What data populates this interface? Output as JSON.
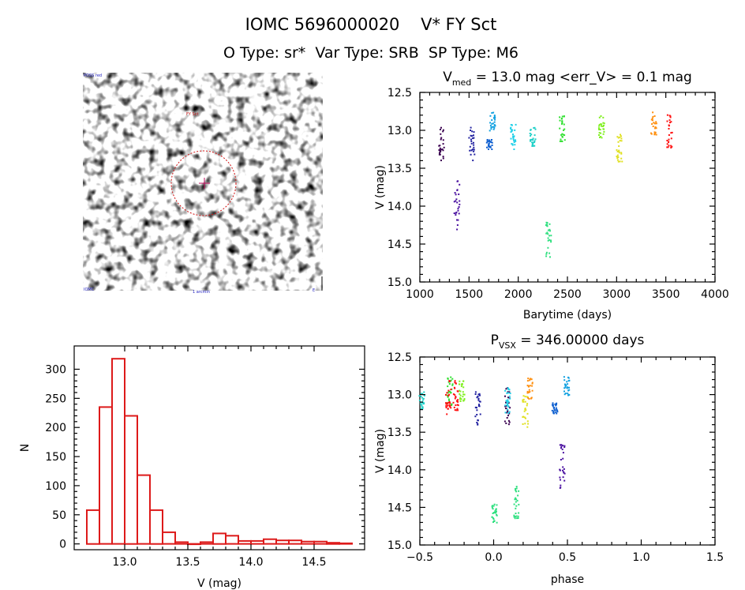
{
  "header": {
    "title": "IOMC 5696000020    V* FY Sct",
    "subtitle": "O Type: sr*  Var Type: SRB  SP Type: M6"
  },
  "finder": {
    "label_top_left": "POSS red",
    "label_marker": "FY Sct",
    "label_bottom_left": "IOMC",
    "label_bottom_center": "1 arcmin",
    "label_bottom_right": "E"
  },
  "chart_data": [
    {
      "id": "lightcurve",
      "type": "scatter",
      "title": "V",
      "title_sub": "med",
      "title_rest": " = 13.0 mag <err_V> = 0.1 mag",
      "xlabel": "Barytime (days)",
      "ylabel": "V (mag)",
      "xlim": [
        1000,
        4000
      ],
      "ylim": [
        15.0,
        12.5
      ],
      "xticks": [
        1000,
        1500,
        2000,
        2500,
        3000,
        3500,
        4000
      ],
      "yticks": [
        12.5,
        13.0,
        13.5,
        14.0,
        14.5,
        15.0
      ],
      "xtick_labels": [
        "1000",
        "1500",
        "2000",
        "2500",
        "3000",
        "3500",
        "4000"
      ],
      "ytick_labels": [
        "12.5",
        "13.0",
        "13.5",
        "14.0",
        "14.5",
        "15.0"
      ],
      "groups": [
        {
          "x": 1210,
          "y0": 12.9,
          "y1": 13.4,
          "color": "#3a0050"
        },
        {
          "x": 1370,
          "y0": 13.65,
          "y1": 14.3,
          "color": "#4a10a0"
        },
        {
          "x": 1520,
          "y0": 12.95,
          "y1": 13.4,
          "color": "#2020a0"
        },
        {
          "x": 1700,
          "y0": 13.1,
          "y1": 13.25,
          "color": "#1060d0"
        },
        {
          "x": 1730,
          "y0": 12.75,
          "y1": 13.0,
          "color": "#10a0e0"
        },
        {
          "x": 1940,
          "y0": 12.9,
          "y1": 13.25,
          "color": "#20d0e8"
        },
        {
          "x": 2140,
          "y0": 12.95,
          "y1": 13.2,
          "color": "#20d0c8"
        },
        {
          "x": 2300,
          "y0": 14.2,
          "y1": 14.7,
          "color": "#30e080"
        },
        {
          "x": 2440,
          "y0": 12.75,
          "y1": 13.15,
          "color": "#30e030"
        },
        {
          "x": 2840,
          "y0": 12.8,
          "y1": 13.1,
          "color": "#80f020"
        },
        {
          "x": 3020,
          "y0": 13.0,
          "y1": 13.45,
          "color": "#e0e020"
        },
        {
          "x": 3370,
          "y0": 12.75,
          "y1": 13.05,
          "color": "#ff9010"
        },
        {
          "x": 3530,
          "y0": 12.75,
          "y1": 13.25,
          "color": "#ff1010"
        }
      ]
    },
    {
      "id": "histogram",
      "type": "bar",
      "title": "",
      "xlabel": "V (mag)",
      "ylabel": "N",
      "xlim": [
        12.6,
        14.9
      ],
      "ylim": [
        -10,
        340
      ],
      "xticks": [
        13.0,
        13.5,
        14.0,
        14.5
      ],
      "yticks": [
        0,
        50,
        100,
        150,
        200,
        250,
        300
      ],
      "xtick_labels": [
        "13.0",
        "13.5",
        "14.0",
        "14.5"
      ],
      "ytick_labels": [
        "0",
        "50",
        "100",
        "150",
        "200",
        "250",
        "300"
      ],
      "bin_width": 0.1,
      "bin_starts": [
        12.7,
        12.8,
        12.9,
        13.0,
        13.1,
        13.2,
        13.3,
        13.4,
        13.5,
        13.6,
        13.7,
        13.8,
        13.9,
        14.0,
        14.1,
        14.2,
        14.3,
        14.4,
        14.5,
        14.6,
        14.7
      ],
      "values": [
        58,
        235,
        318,
        220,
        118,
        58,
        20,
        3,
        0,
        3,
        18,
        14,
        5,
        5,
        8,
        6,
        6,
        4,
        4,
        2,
        1
      ],
      "color": "#dd1a1a"
    },
    {
      "id": "phased",
      "type": "scatter",
      "title": "P",
      "title_sub": "VSX",
      "title_rest": " = 346.00000 days",
      "xlabel": "phase",
      "ylabel": "V (mag)",
      "xlim": [
        -0.5,
        1.5
      ],
      "ylim": [
        15.0,
        12.5
      ],
      "xticks": [
        -0.5,
        0.0,
        0.5,
        1.0,
        1.5
      ],
      "yticks": [
        12.5,
        13.0,
        13.5,
        14.0,
        14.5,
        15.0
      ],
      "xtick_labels": [
        "−0.5",
        "0.0",
        "0.5",
        "1.0",
        "1.5"
      ],
      "ytick_labels": [
        "12.5",
        "13.0",
        "13.5",
        "14.0",
        "14.5",
        "15.0"
      ],
      "groups": [
        {
          "x": 0.09,
          "y0": 12.9,
          "y1": 13.4,
          "color": "#3a0050"
        },
        {
          "x": 0.46,
          "y0": 13.65,
          "y1": 14.3,
          "color": "#4a10a0"
        },
        {
          "x": -0.11,
          "y0": 12.95,
          "y1": 13.4,
          "color": "#2020a0"
        },
        {
          "x": 0.41,
          "y0": 13.1,
          "y1": 13.25,
          "color": "#1060d0"
        },
        {
          "x": 0.49,
          "y0": 12.75,
          "y1": 13.0,
          "color": "#10a0e0"
        },
        {
          "x": 0.09,
          "y0": 12.9,
          "y1": 13.25,
          "color": "#20d0e8"
        },
        {
          "x": -0.49,
          "y0": 12.95,
          "y1": 13.2,
          "color": "#20d0c8"
        },
        {
          "x": 0.0,
          "y0": 14.45,
          "y1": 14.7,
          "color": "#30e080"
        },
        {
          "x": 0.15,
          "y0": 14.2,
          "y1": 14.65,
          "color": "#30e080"
        },
        {
          "x": -0.3,
          "y0": 12.75,
          "y1": 13.15,
          "color": "#30e030"
        },
        {
          "x": -0.22,
          "y0": 12.8,
          "y1": 13.1,
          "color": "#80f020"
        },
        {
          "x": 0.21,
          "y0": 13.0,
          "y1": 13.45,
          "color": "#e0e020"
        },
        {
          "x": 0.24,
          "y0": 12.75,
          "y1": 13.05,
          "color": "#ff9010"
        },
        {
          "x": -0.31,
          "y0": 12.75,
          "y1": 13.25,
          "color": "#ff1010"
        },
        {
          "x": -0.26,
          "y0": 12.8,
          "y1": 13.2,
          "color": "#ff1010"
        }
      ]
    }
  ]
}
